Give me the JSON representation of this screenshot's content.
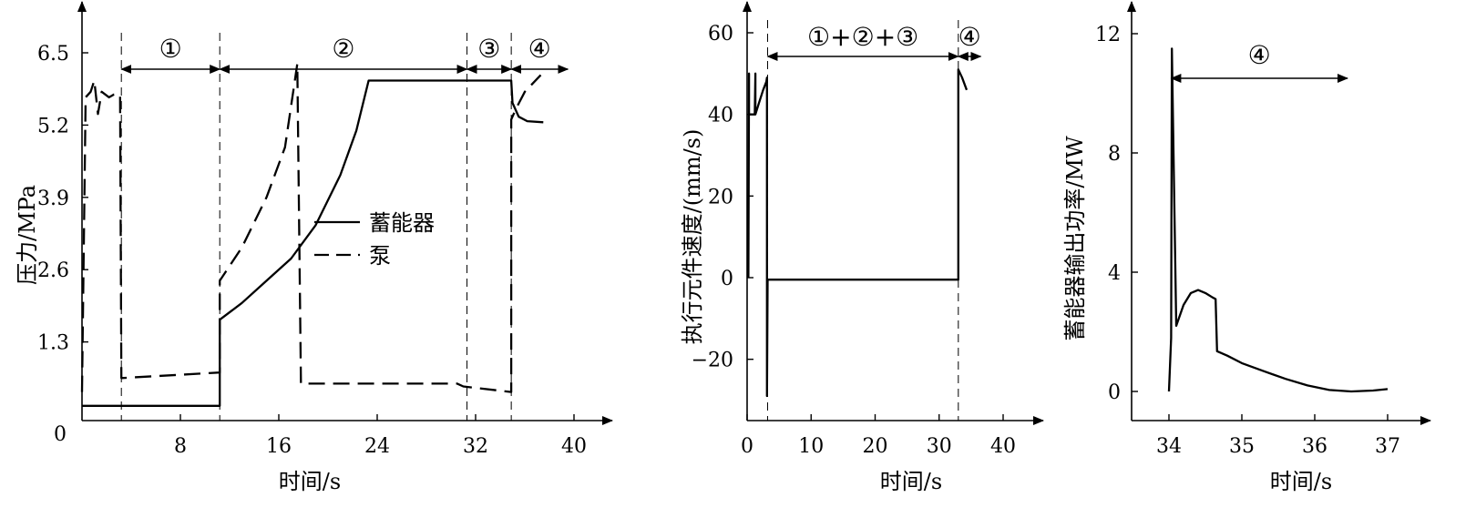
{
  "chart_data": [
    {
      "type": "line",
      "xlabel": "时间/s",
      "ylabel": "压力/MPa",
      "x_ticks": [
        "8",
        "16",
        "24",
        "32",
        "40"
      ],
      "y_ticks": [
        "1.3",
        "2.6",
        "3.9",
        "5.2",
        "6.5"
      ],
      "origin_label": "0",
      "xlim": [
        0,
        43
      ],
      "ylim": [
        0,
        7.1
      ],
      "grid": false,
      "legend_position": "center-right",
      "series": [
        {
          "name": "蓄能器",
          "style": "solid",
          "x": [
            0,
            11.2,
            11.2,
            13,
            15,
            17,
            19,
            21,
            22.3,
            23.3,
            34.9,
            35.0,
            35.5,
            36.2,
            37.5
          ],
          "y": [
            0.15,
            0.15,
            1.7,
            2.0,
            2.4,
            2.8,
            3.4,
            4.3,
            5.1,
            6.0,
            6.0,
            5.6,
            5.35,
            5.27,
            5.25
          ]
        },
        {
          "name": "泵",
          "style": "dashed",
          "x": [
            0,
            0.3,
            0.7,
            1.0,
            1.3,
            1.6,
            2.2,
            2.6,
            3.1,
            3.2,
            11.2,
            11.2,
            13,
            15,
            16.5,
            17.5,
            17.8,
            30.5,
            31,
            34.9,
            34.9,
            35.3,
            36,
            37.3
          ],
          "y": [
            0.4,
            5.7,
            5.8,
            6.0,
            5.4,
            5.8,
            5.7,
            5.75,
            5.75,
            0.65,
            0.75,
            2.4,
            3.0,
            3.9,
            4.8,
            6.3,
            0.55,
            0.55,
            0.5,
            0.4,
            5.3,
            5.5,
            5.8,
            6.1
          ]
        }
      ],
      "annotations": [
        {
          "label": "①",
          "x_start": 3.2,
          "x_end": 11.2
        },
        {
          "label": "②",
          "x_start": 11.2,
          "x_end": 31.3
        },
        {
          "label": "③",
          "x_start": 31.3,
          "x_end": 34.9
        },
        {
          "label": "④",
          "x_start": 34.9,
          "x_end": 39.5
        }
      ],
      "phase_boundaries": [
        3.2,
        11.2,
        31.3,
        34.9
      ]
    },
    {
      "type": "line",
      "xlabel": "时间/s",
      "ylabel": "执行元件速度/(mm/s)",
      "x_ticks": [
        "0",
        "10",
        "20",
        "30",
        "40"
      ],
      "y_ticks": [
        "−20",
        "0",
        "20",
        "40",
        "60"
      ],
      "xlim": [
        0,
        44
      ],
      "ylim": [
        -35,
        68
      ],
      "grid": false,
      "series": [
        {
          "name": "",
          "style": "solid",
          "x": [
            0.2,
            0.3,
            0.3,
            1.2,
            1.3,
            1.3,
            1.9,
            2.5,
            3.0,
            3.1,
            3.1,
            3.2,
            33.0,
            33.0,
            33.6,
            34.3
          ],
          "y": [
            0,
            50,
            40,
            40,
            50,
            40,
            43,
            46,
            48,
            49,
            -29,
            -0.5,
            -0.5,
            51,
            49,
            46
          ]
        }
      ],
      "annotations": [
        {
          "label": "①+②+③",
          "x_start": 3.2,
          "x_end": 33.0
        },
        {
          "label": "④",
          "x_start": 33.0,
          "x_end": 36.5
        }
      ],
      "phase_boundaries": [
        3.2,
        33.0
      ]
    },
    {
      "type": "line",
      "xlabel": "时间/s",
      "ylabel": "蓄能器输出功率/MW",
      "x_ticks": [
        "34",
        "35",
        "36",
        "37"
      ],
      "y_ticks": [
        "0",
        "4",
        "8",
        "12"
      ],
      "xlim": [
        33.65,
        37.45
      ],
      "ylim": [
        -1,
        13
      ],
      "grid": false,
      "series": [
        {
          "name": "",
          "style": "solid",
          "x": [
            34.0,
            34.03,
            34.04,
            34.1,
            34.2,
            34.3,
            34.4,
            34.5,
            34.6,
            34.64,
            34.66,
            34.8,
            35.0,
            35.3,
            35.6,
            35.9,
            36.2,
            36.5,
            36.8,
            37.0
          ],
          "y": [
            0,
            1.8,
            11.5,
            2.2,
            2.9,
            3.3,
            3.4,
            3.3,
            3.15,
            3.1,
            1.35,
            1.2,
            0.95,
            0.68,
            0.42,
            0.2,
            0.05,
            0.0,
            0.03,
            0.08
          ]
        }
      ],
      "annotations": [
        {
          "label": "④",
          "x_start": 34.03,
          "x_end": 36.45
        }
      ]
    }
  ]
}
